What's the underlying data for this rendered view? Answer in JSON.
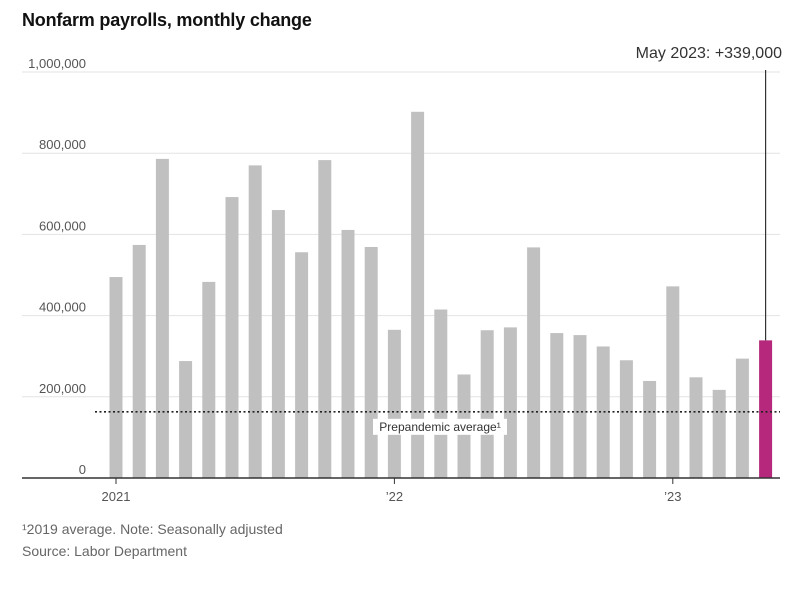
{
  "chart_data": {
    "type": "bar",
    "title": "Nonfarm payrolls, monthly change",
    "xlabel": "",
    "ylabel": "",
    "ylim": [
      0,
      1000000
    ],
    "yticks": [
      0,
      200000,
      400000,
      600000,
      800000,
      1000000
    ],
    "ytick_labels": [
      "0",
      "200,000",
      "400,000",
      "600,000",
      "800,000",
      "1,000,000"
    ],
    "x_labels": [
      {
        "label": "2021",
        "index": 0
      },
      {
        "label": "’22",
        "index": 12
      },
      {
        "label": "’23",
        "index": 24
      }
    ],
    "categories": [
      "Jan 2021",
      "Feb 2021",
      "Mar 2021",
      "Apr 2021",
      "May 2021",
      "Jun 2021",
      "Jul 2021",
      "Aug 2021",
      "Sep 2021",
      "Oct 2021",
      "Nov 2021",
      "Dec 2021",
      "Jan 2022",
      "Feb 2022",
      "Mar 2022",
      "Apr 2022",
      "May 2022",
      "Jun 2022",
      "Jul 2022",
      "Aug 2022",
      "Sep 2022",
      "Oct 2022",
      "Nov 2022",
      "Dec 2022",
      "Jan 2023",
      "Feb 2023",
      "Mar 2023",
      "Apr 2023",
      "May 2023"
    ],
    "values": [
      495000,
      574000,
      786000,
      288000,
      483000,
      692000,
      770000,
      660000,
      556000,
      783000,
      611000,
      569000,
      365000,
      902000,
      415000,
      255000,
      364000,
      371000,
      568000,
      357000,
      352000,
      324000,
      290000,
      239000,
      472000,
      248000,
      217000,
      294000,
      339000
    ],
    "highlight_index": 28,
    "colors": {
      "bar": "#c0c0c0",
      "highlight": "#b5287c",
      "grid": "#e3e3e3",
      "axis": "#333333",
      "reference": "#222222"
    },
    "reference_line": {
      "value": 163000,
      "label": "Prepandemic average¹"
    },
    "annotation": "May 2023: +339,000"
  },
  "footnotes": {
    "note": "¹2019 average. Note: Seasonally adjusted",
    "source": "Source: Labor Department"
  }
}
